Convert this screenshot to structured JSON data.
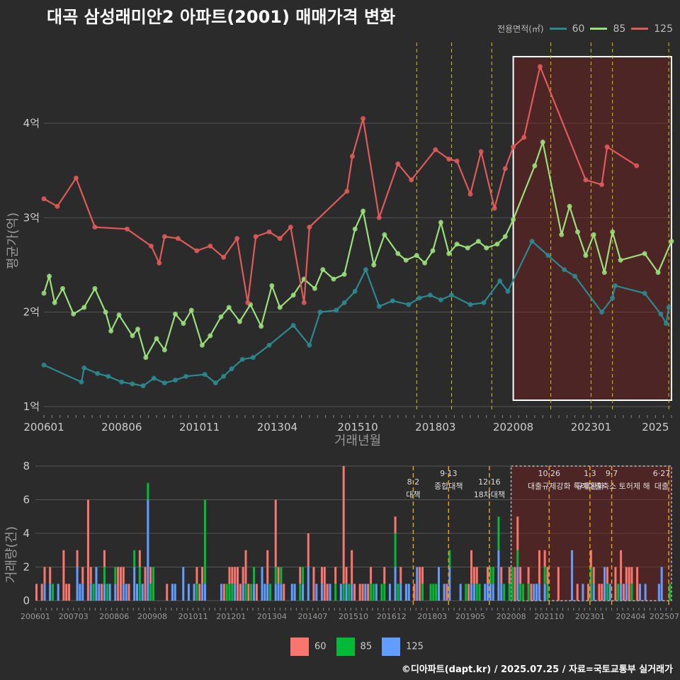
{
  "title": "대곡 삼성래미안2 아파트(2001) 매매가격 변화",
  "footer": "©디아파트(dapt.kr) / 2025.07.25 / 자료=국토교통부 실거래가",
  "colors": {
    "s60": "#2a8a90",
    "s85": "#9ae07a",
    "s125": "#e05a5a",
    "bar60": "#f8766d",
    "bar85": "#00ba38",
    "bar125": "#619cff"
  },
  "legend_top": {
    "title": "전용면적(㎡)",
    "items": [
      "60",
      "85",
      "125"
    ]
  },
  "legend_bottom": {
    "items": [
      "60",
      "85",
      "125"
    ]
  },
  "chart_data": [
    {
      "type": "line",
      "xlabel": "거래년월",
      "ylabel": "평균가(억)",
      "x_ticks": [
        "200601",
        "200806",
        "201011",
        "201304",
        "201510",
        "201803",
        "202008",
        "202301",
        "2025"
      ],
      "y_ticks": [
        "1억",
        "2억",
        "3억",
        "4억"
      ],
      "ylim": [
        1,
        4.9
      ],
      "xlim": [
        "2006-01",
        "2025-07"
      ],
      "highlight_range": [
        "2020-08",
        "2025-07"
      ],
      "series": [
        {
          "name": "60",
          "points": [
            [
              "2006-01",
              1.44
            ],
            [
              "2007-03",
              1.26
            ],
            [
              "2007-04",
              1.41
            ],
            [
              "2007-09",
              1.35
            ],
            [
              "2008-01",
              1.32
            ],
            [
              "2008-06",
              1.26
            ],
            [
              "2008-10",
              1.24
            ],
            [
              "2009-02",
              1.22
            ],
            [
              "2009-06",
              1.3
            ],
            [
              "2009-10",
              1.25
            ],
            [
              "2010-02",
              1.28
            ],
            [
              "2010-06",
              1.32
            ],
            [
              "2011-01",
              1.34
            ],
            [
              "2011-05",
              1.25
            ],
            [
              "2011-08",
              1.32
            ],
            [
              "2011-11",
              1.4
            ],
            [
              "2012-03",
              1.5
            ],
            [
              "2012-07",
              1.52
            ],
            [
              "2013-01",
              1.65
            ],
            [
              "2013-10",
              1.86
            ],
            [
              "2014-04",
              1.65
            ],
            [
              "2014-08",
              2.0
            ],
            [
              "2015-02",
              2.02
            ],
            [
              "2015-05",
              2.1
            ],
            [
              "2015-09",
              2.22
            ],
            [
              "2016-01",
              2.45
            ],
            [
              "2016-06",
              2.06
            ],
            [
              "2016-11",
              2.12
            ],
            [
              "2017-05",
              2.08
            ],
            [
              "2017-09",
              2.15
            ],
            [
              "2018-01",
              2.18
            ],
            [
              "2018-05",
              2.13
            ],
            [
              "2018-09",
              2.18
            ],
            [
              "2019-04",
              2.08
            ],
            [
              "2019-09",
              2.1
            ],
            [
              "2020-03",
              2.33
            ],
            [
              "2020-06",
              2.22
            ],
            [
              "2021-03",
              2.75
            ],
            [
              "2021-09",
              2.6
            ],
            [
              "2022-03",
              2.45
            ],
            [
              "2022-07",
              2.38
            ],
            [
              "2023-05",
              2.0
            ],
            [
              "2023-09",
              2.15
            ],
            [
              "2023-10",
              2.28
            ],
            [
              "2024-09",
              2.2
            ],
            [
              "2025-03",
              1.98
            ],
            [
              "2025-05",
              1.88
            ],
            [
              "2025-06",
              2.05
            ]
          ]
        },
        {
          "name": "85",
          "points": [
            [
              "2006-01",
              2.2
            ],
            [
              "2006-03",
              2.38
            ],
            [
              "2006-05",
              2.1
            ],
            [
              "2006-08",
              2.25
            ],
            [
              "2006-12",
              1.98
            ],
            [
              "2007-04",
              2.05
            ],
            [
              "2007-08",
              2.25
            ],
            [
              "2007-12",
              2.0
            ],
            [
              "2008-02",
              1.8
            ],
            [
              "2008-05",
              1.97
            ],
            [
              "2008-10",
              1.75
            ],
            [
              "2008-12",
              1.82
            ],
            [
              "2009-03",
              1.52
            ],
            [
              "2009-07",
              1.72
            ],
            [
              "2009-10",
              1.6
            ],
            [
              "2010-02",
              1.98
            ],
            [
              "2010-05",
              1.88
            ],
            [
              "2010-08",
              2.02
            ],
            [
              "2010-12",
              1.65
            ],
            [
              "2011-03",
              1.75
            ],
            [
              "2011-07",
              1.95
            ],
            [
              "2011-10",
              2.05
            ],
            [
              "2012-02",
              1.9
            ],
            [
              "2012-06",
              2.08
            ],
            [
              "2012-10",
              1.85
            ],
            [
              "2013-02",
              2.28
            ],
            [
              "2013-05",
              2.05
            ],
            [
              "2013-10",
              2.18
            ],
            [
              "2014-02",
              2.35
            ],
            [
              "2014-06",
              2.25
            ],
            [
              "2014-09",
              2.45
            ],
            [
              "2015-01",
              2.35
            ],
            [
              "2015-05",
              2.4
            ],
            [
              "2015-09",
              2.88
            ],
            [
              "2015-12",
              3.07
            ],
            [
              "2016-04",
              2.5
            ],
            [
              "2016-08",
              2.82
            ],
            [
              "2017-01",
              2.62
            ],
            [
              "2017-04",
              2.55
            ],
            [
              "2017-08",
              2.6
            ],
            [
              "2017-11",
              2.52
            ],
            [
              "2018-02",
              2.65
            ],
            [
              "2018-05",
              2.95
            ],
            [
              "2018-08",
              2.62
            ],
            [
              "2018-11",
              2.72
            ],
            [
              "2019-03",
              2.68
            ],
            [
              "2019-07",
              2.75
            ],
            [
              "2019-10",
              2.68
            ],
            [
              "2020-02",
              2.72
            ],
            [
              "2020-05",
              2.8
            ],
            [
              "2020-08",
              2.98
            ],
            [
              "2021-04",
              3.55
            ],
            [
              "2021-07",
              3.8
            ],
            [
              "2022-02",
              2.82
            ],
            [
              "2022-05",
              3.12
            ],
            [
              "2022-08",
              2.85
            ],
            [
              "2022-11",
              2.6
            ],
            [
              "2023-02",
              2.82
            ],
            [
              "2023-06",
              2.42
            ],
            [
              "2023-09",
              2.85
            ],
            [
              "2023-12",
              2.55
            ],
            [
              "2024-09",
              2.62
            ],
            [
              "2025-02",
              2.42
            ],
            [
              "2025-07",
              2.75
            ]
          ]
        },
        {
          "name": "125",
          "points": [
            [
              "2006-01",
              3.2
            ],
            [
              "2006-06",
              3.12
            ],
            [
              "2007-01",
              3.42
            ],
            [
              "2007-08",
              2.9
            ],
            [
              "2008-08",
              2.88
            ],
            [
              "2009-05",
              2.7
            ],
            [
              "2009-08",
              2.52
            ],
            [
              "2009-10",
              2.8
            ],
            [
              "2010-03",
              2.78
            ],
            [
              "2010-10",
              2.65
            ],
            [
              "2011-03",
              2.7
            ],
            [
              "2011-08",
              2.58
            ],
            [
              "2012-01",
              2.78
            ],
            [
              "2012-05",
              2.1
            ],
            [
              "2012-08",
              2.8
            ],
            [
              "2013-01",
              2.85
            ],
            [
              "2013-05",
              2.78
            ],
            [
              "2013-09",
              2.9
            ],
            [
              "2014-02",
              2.1
            ],
            [
              "2014-04",
              2.9
            ],
            [
              "2015-06",
              3.28
            ],
            [
              "2015-08",
              3.65
            ],
            [
              "2015-12",
              4.05
            ],
            [
              "2016-06",
              3.0
            ],
            [
              "2017-01",
              3.57
            ],
            [
              "2017-06",
              3.4
            ],
            [
              "2018-03",
              3.72
            ],
            [
              "2018-08",
              3.62
            ],
            [
              "2018-11",
              3.6
            ],
            [
              "2019-04",
              3.25
            ],
            [
              "2019-08",
              3.7
            ],
            [
              "2020-01",
              3.1
            ],
            [
              "2020-05",
              3.52
            ],
            [
              "2020-08",
              3.75
            ],
            [
              "2020-12",
              3.85
            ],
            [
              "2021-06",
              4.6
            ],
            [
              "2022-11",
              3.4
            ],
            [
              "2023-05",
              3.35
            ],
            [
              "2023-07",
              3.75
            ],
            [
              "2024-06",
              3.55
            ]
          ]
        }
      ]
    },
    {
      "type": "bar",
      "stacked": true,
      "ylabel": "거래량(건)",
      "x_ticks": [
        "200601",
        "200703",
        "200806",
        "200908",
        "201011",
        "201201",
        "201304",
        "201407",
        "201510",
        "201612",
        "201803",
        "201905",
        "202008",
        "202110",
        "202301",
        "202404",
        "202507"
      ],
      "y_ticks": [
        "0",
        "2",
        "4",
        "6",
        "8"
      ],
      "ylim": [
        0,
        8
      ],
      "highlight_range": [
        "2020-08",
        "2025-07"
      ],
      "policy_events": [
        {
          "x": "2017-08",
          "label": "8·2 대책"
        },
        {
          "x": "2018-09",
          "label": "9·13 종합대책"
        },
        {
          "x": "2019-12",
          "label": "12·16 18차대책"
        },
        {
          "x": "2021-10",
          "label": "10·26 대출규제강화"
        },
        {
          "x": "2023-01",
          "label": "1·3 규제완화"
        },
        {
          "x": "2023-09",
          "label": "9·7 특례대출축소 토허제 해"
        },
        {
          "x": "2025-06",
          "label": "6·27 대출"
        }
      ],
      "peaks": [
        {
          "x": "2007-08",
          "value": 6
        },
        {
          "x": "2009-06",
          "value": 7
        },
        {
          "x": "2011-03",
          "value": 6
        },
        {
          "x": "2013-05",
          "value": 6
        },
        {
          "x": "2014-05",
          "value": 4
        },
        {
          "x": "2015-06",
          "value": 8
        },
        {
          "x": "2017-01",
          "value": 5
        },
        {
          "x": "2019-05",
          "value": 3
        },
        {
          "x": "2020-03",
          "value": 5
        },
        {
          "x": "2020-10",
          "value": 5
        }
      ]
    }
  ]
}
